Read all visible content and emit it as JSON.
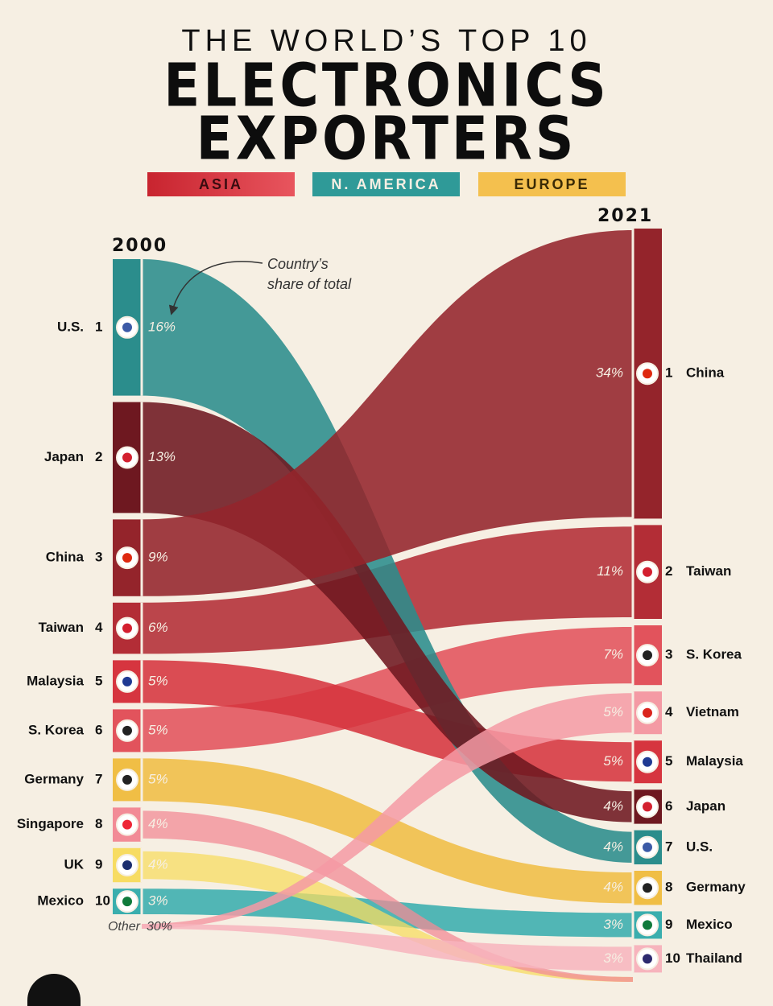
{
  "header": {
    "pretitle": "THE WORLD’S TOP 10",
    "title_line1": "ELECTRONICS",
    "title_line2": "EXPORTERS"
  },
  "legend": {
    "asia": "ASIA",
    "north_america": "N. AMERICA",
    "europe": "EUROPE"
  },
  "annotation": {
    "line1": "Country’s",
    "line2": "share of total"
  },
  "colors": {
    "background": "#f6efe3",
    "china": "#94242b",
    "japan": "#6e1820",
    "taiwan": "#b32d36",
    "malaysia": "#d6353f",
    "skorea": "#e2535c",
    "singapore": "#f28b96",
    "vietnam": "#f49aa4",
    "thailand": "#f7b4bd",
    "us": "#2b8d8c",
    "mexico": "#3aaeae",
    "germany": "#f0be45",
    "uk": "#f7dc62",
    "other": "#e8dfcf"
  },
  "chart_data": {
    "type": "sankey",
    "unit": "% share of total electronics exports",
    "years": [
      "2000",
      "2021"
    ],
    "left": [
      {
        "rank": 1,
        "country": "U.S.",
        "value": 16,
        "label": "16%",
        "region": "N. America"
      },
      {
        "rank": 2,
        "country": "Japan",
        "value": 13,
        "label": "13%",
        "region": "Asia"
      },
      {
        "rank": 3,
        "country": "China",
        "value": 9,
        "label": "9%",
        "region": "Asia"
      },
      {
        "rank": 4,
        "country": "Taiwan",
        "value": 6,
        "label": "6%",
        "region": "Asia"
      },
      {
        "rank": 5,
        "country": "Malaysia",
        "value": 5,
        "label": "5%",
        "region": "Asia"
      },
      {
        "rank": 6,
        "country": "S. Korea",
        "value": 5,
        "label": "5%",
        "region": "Asia"
      },
      {
        "rank": 7,
        "country": "Germany",
        "value": 5,
        "label": "5%",
        "region": "Europe"
      },
      {
        "rank": 8,
        "country": "Singapore",
        "value": 4,
        "label": "4%",
        "region": "Asia"
      },
      {
        "rank": 9,
        "country": "UK",
        "value": 4,
        "label": "4%",
        "region": "Europe"
      },
      {
        "rank": 10,
        "country": "Mexico",
        "value": 3,
        "label": "3%",
        "region": "N. America"
      }
    ],
    "left_other": {
      "label": "Other",
      "value": 30,
      "value_label": "30%"
    },
    "right": [
      {
        "rank": 1,
        "country": "China",
        "value": 34,
        "label": "34%",
        "region": "Asia"
      },
      {
        "rank": 2,
        "country": "Taiwan",
        "value": 11,
        "label": "11%",
        "region": "Asia"
      },
      {
        "rank": 3,
        "country": "S. Korea",
        "value": 7,
        "label": "7%",
        "region": "Asia"
      },
      {
        "rank": 4,
        "country": "Vietnam",
        "value": 5,
        "label": "5%",
        "region": "Asia"
      },
      {
        "rank": 5,
        "country": "Malaysia",
        "value": 5,
        "label": "5%",
        "region": "Asia"
      },
      {
        "rank": 6,
        "country": "Japan",
        "value": 4,
        "label": "4%",
        "region": "Asia"
      },
      {
        "rank": 7,
        "country": "U.S.",
        "value": 4,
        "label": "4%",
        "region": "N. America"
      },
      {
        "rank": 8,
        "country": "Germany",
        "value": 4,
        "label": "4%",
        "region": "Europe"
      },
      {
        "rank": 9,
        "country": "Mexico",
        "value": 3,
        "label": "3%",
        "region": "N. America"
      },
      {
        "rank": 10,
        "country": "Thailand",
        "value": 3,
        "label": "3%",
        "region": "Asia"
      }
    ]
  }
}
